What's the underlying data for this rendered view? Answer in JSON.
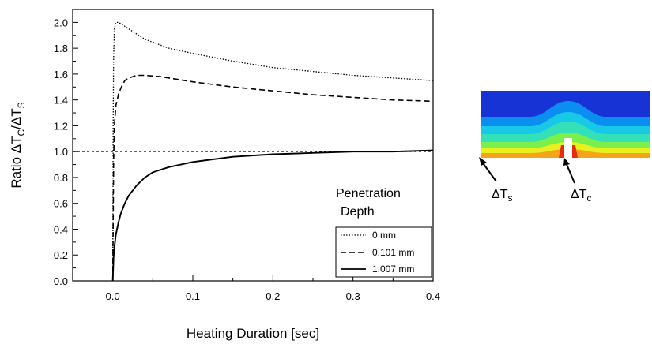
{
  "chart_data": {
    "type": "line",
    "title": "",
    "xlabel": "Heating Duration [sec]",
    "ylabel": {
      "main": "Ratio ΔT",
      "sub1": "C",
      "mid": "/ΔT",
      "sub2": "S"
    },
    "xlim": [
      -0.05,
      0.4
    ],
    "ylim": [
      0.0,
      2.1
    ],
    "xticks": [
      0.0,
      0.1,
      0.2,
      0.3,
      0.4
    ],
    "xtick_labels": [
      "0.0",
      "0.1",
      "0.2",
      "0.3",
      "0.4"
    ],
    "yticks": [
      0.0,
      0.2,
      0.4,
      0.6,
      0.8,
      1.0,
      1.2,
      1.4,
      1.6,
      1.8,
      2.0
    ],
    "ytick_labels": [
      "0.0",
      "0.2",
      "0.4",
      "0.6",
      "0.8",
      "1.0",
      "1.2",
      "1.4",
      "1.6",
      "1.8",
      "2.0"
    ],
    "reference_line": {
      "y": 1.0,
      "style": "dashed"
    },
    "grid": false,
    "legend": {
      "title_line1": "Penetration",
      "title_line2": "Depth",
      "placement": "bottom-right"
    },
    "series": [
      {
        "name": "0 mm",
        "style": "dotted",
        "x": [
          0.0,
          0.0005,
          0.001,
          0.002,
          0.004,
          0.007,
          0.01,
          0.02,
          0.04,
          0.07,
          0.1,
          0.15,
          0.2,
          0.25,
          0.3,
          0.35,
          0.4
        ],
        "y": [
          0.0,
          1.2,
          1.7,
          1.95,
          2.0,
          2.0,
          1.99,
          1.95,
          1.87,
          1.8,
          1.76,
          1.7,
          1.65,
          1.62,
          1.59,
          1.57,
          1.55
        ]
      },
      {
        "name": "0.101 mm",
        "style": "dashed",
        "x": [
          0.0,
          0.001,
          0.002,
          0.004,
          0.007,
          0.01,
          0.015,
          0.02,
          0.03,
          0.04,
          0.06,
          0.1,
          0.15,
          0.2,
          0.25,
          0.3,
          0.35,
          0.4
        ],
        "y": [
          0.0,
          0.9,
          1.2,
          1.36,
          1.44,
          1.49,
          1.55,
          1.57,
          1.59,
          1.59,
          1.58,
          1.54,
          1.5,
          1.47,
          1.44,
          1.42,
          1.4,
          1.39
        ],
        "data_labels_note": ""
      },
      {
        "name": "1.007 mm",
        "style": "solid",
        "x": [
          0.0,
          0.001,
          0.002,
          0.004,
          0.007,
          0.01,
          0.015,
          0.02,
          0.03,
          0.04,
          0.05,
          0.07,
          0.1,
          0.15,
          0.2,
          0.25,
          0.3,
          0.35,
          0.4
        ],
        "y": [
          0.0,
          0.18,
          0.26,
          0.36,
          0.45,
          0.52,
          0.6,
          0.66,
          0.74,
          0.8,
          0.84,
          0.88,
          0.92,
          0.96,
          0.98,
          0.99,
          1.0,
          1.0,
          1.01
        ]
      }
    ]
  },
  "inset": {
    "label_s": {
      "main": "ΔT",
      "sub": "s"
    },
    "label_c": {
      "main": "ΔT",
      "sub": "c"
    },
    "colors": {
      "top": "#1733d6",
      "band1": "#0a8ff0",
      "band2": "#17c9e6",
      "band3": "#34e0b8",
      "band4": "#7cf04a",
      "band5": "#e8f020",
      "band6": "#f5a41a",
      "hot": "#e82a10",
      "notch": "#ffffff"
    }
  }
}
